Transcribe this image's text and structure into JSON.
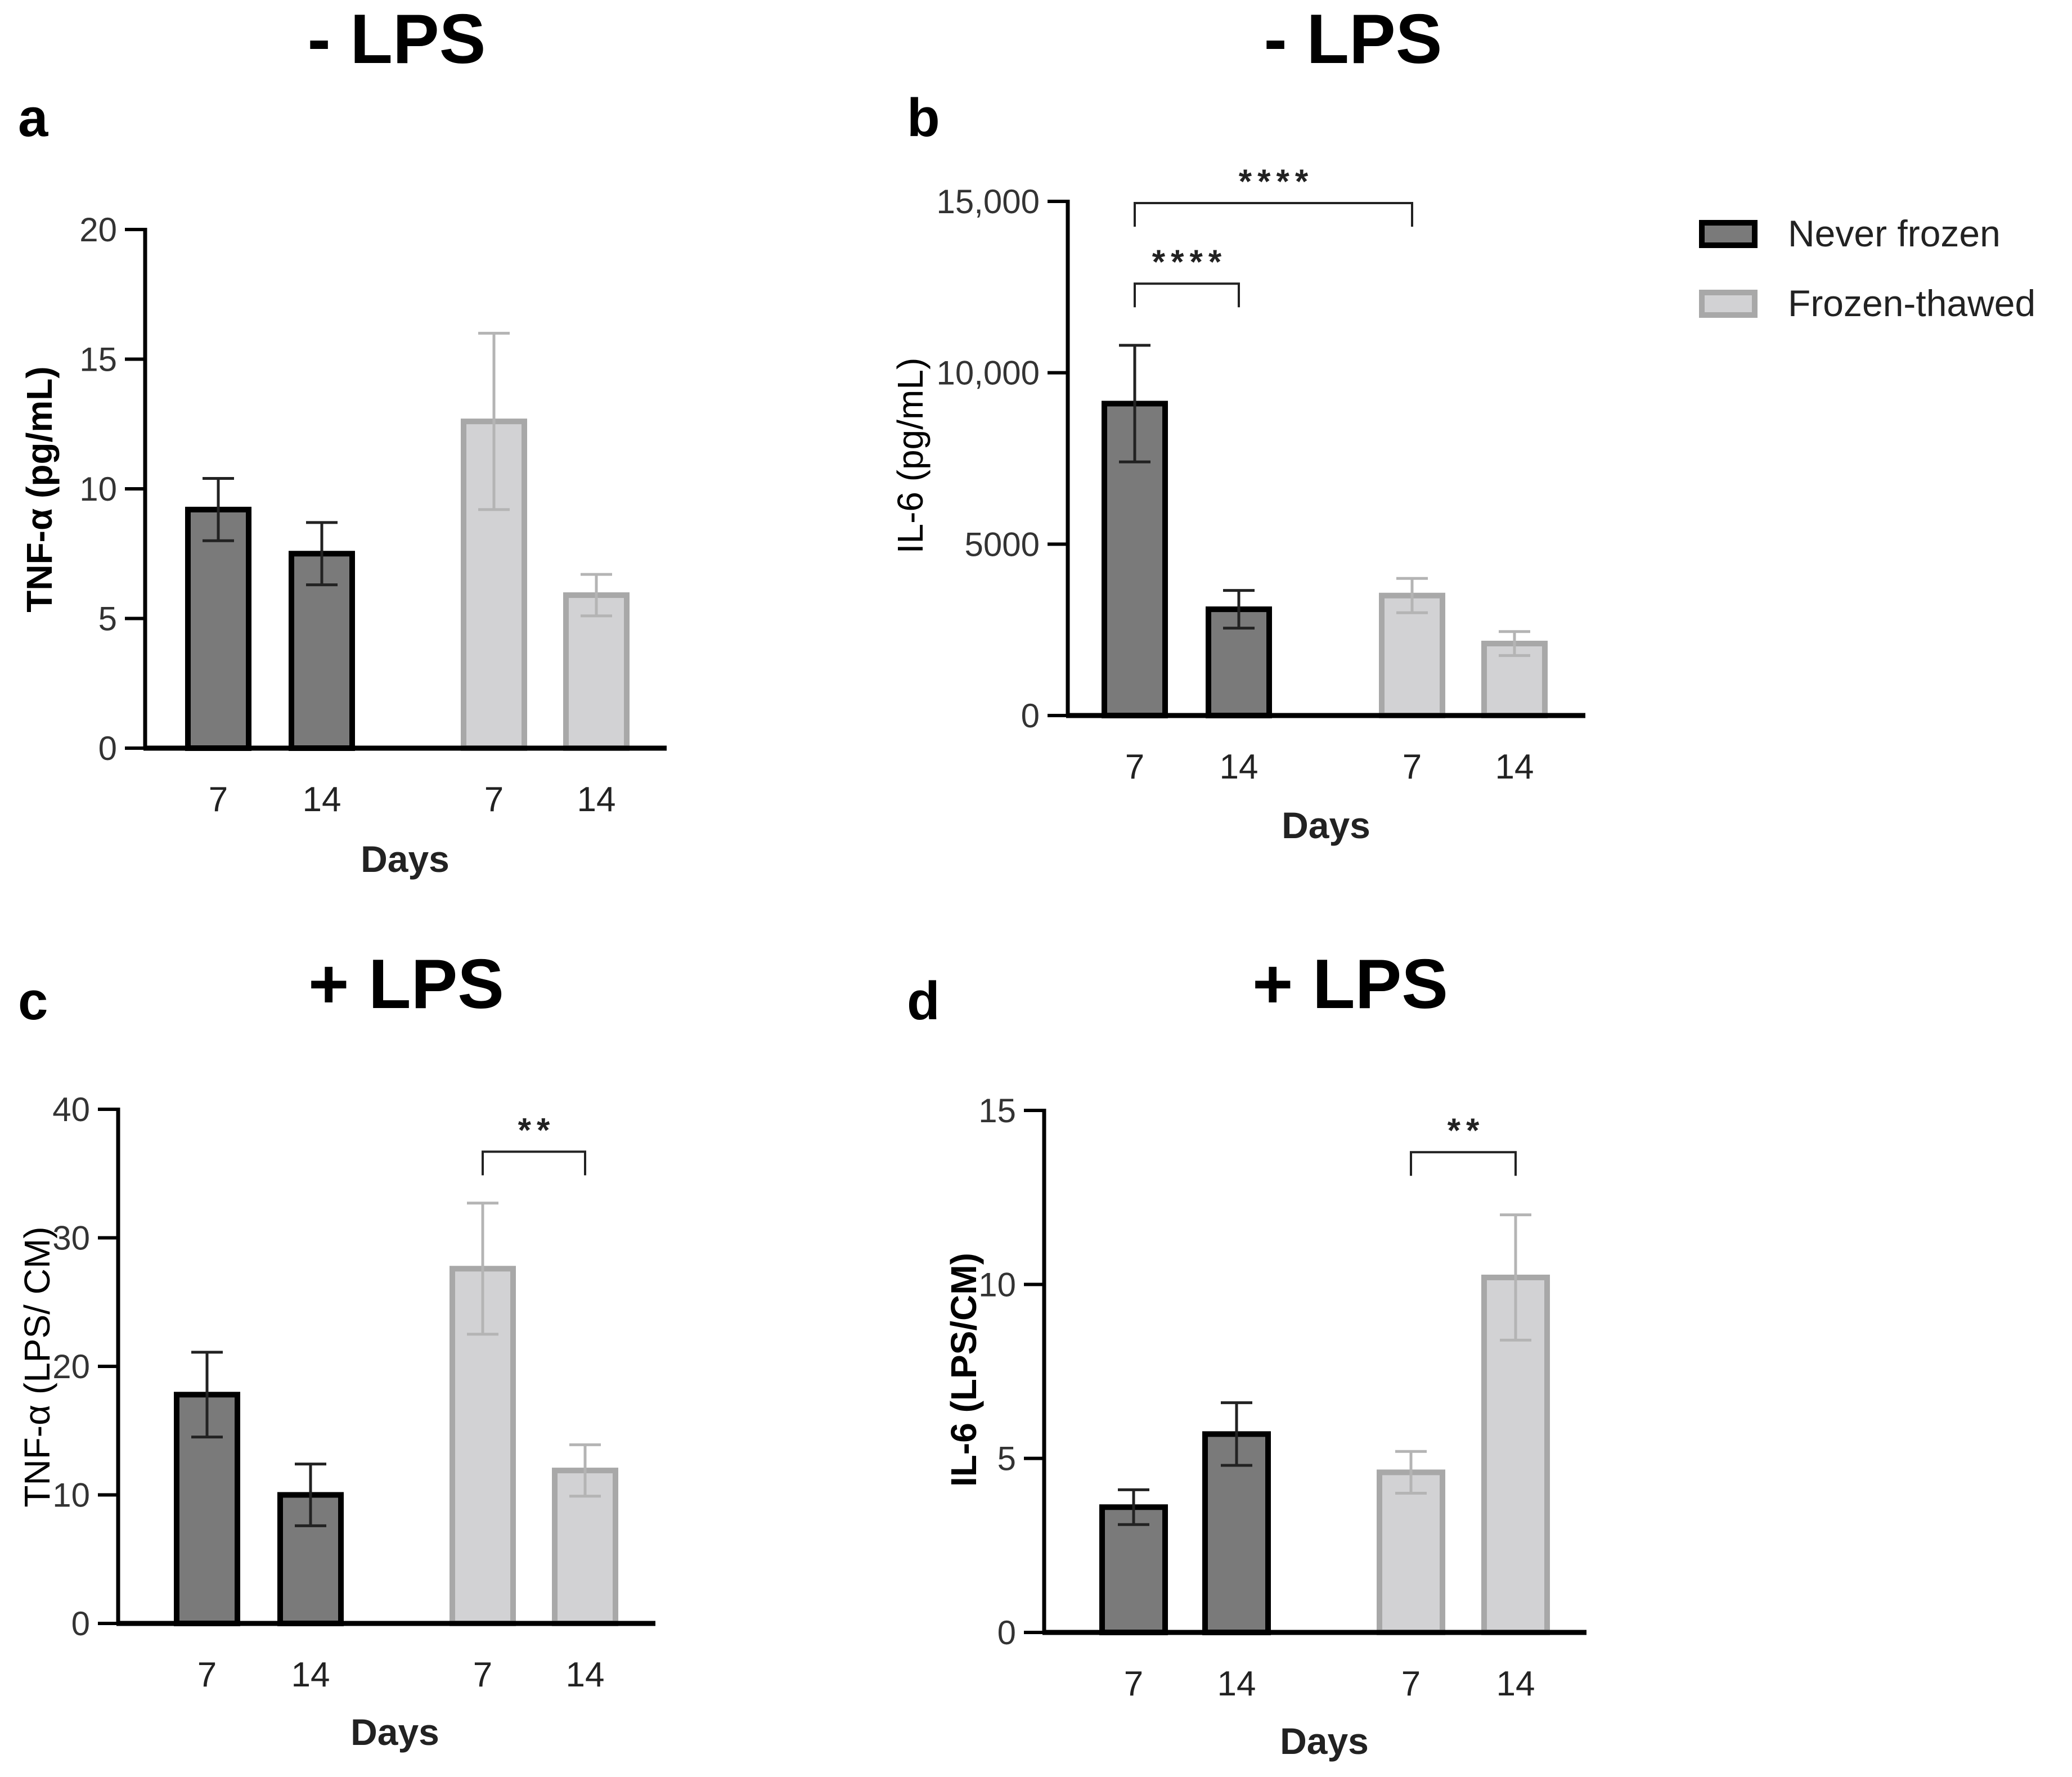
{
  "colors": {
    "never_frozen_fill": "#7a7a7a",
    "never_frozen_stroke": "#000000",
    "never_frozen_err": "#222222",
    "frozen_thawed_fill": "#d2d2d4",
    "frozen_thawed_stroke": "#a8a8a8",
    "frozen_thawed_err": "#b4b4b4"
  },
  "legend": {
    "entries": [
      {
        "label": "Never frozen",
        "series": "never_frozen"
      },
      {
        "label": "Frozen-thawed",
        "series": "frozen_thawed"
      }
    ]
  },
  "chart_data": [
    {
      "type": "bar",
      "panel": "a",
      "title": "- LPS",
      "ylabel": "TNF-α (pg/mL)",
      "ylabel_bold": true,
      "xlabel": "Days",
      "ylim": [
        0,
        20
      ],
      "yticks": [
        0,
        5,
        10,
        15,
        20
      ],
      "ytick_labels": [
        "0",
        "5",
        "10",
        "15",
        "20"
      ],
      "categories": [
        "7",
        "14",
        "7",
        "14"
      ],
      "bars": [
        {
          "series": "never_frozen",
          "value": 9.2,
          "err": 1.2
        },
        {
          "series": "never_frozen",
          "value": 7.5,
          "err": 1.2
        },
        {
          "series": "frozen_thawed",
          "value": 12.6,
          "err": 3.4
        },
        {
          "series": "frozen_thawed",
          "value": 5.9,
          "err": 0.8
        }
      ],
      "significance": []
    },
    {
      "type": "bar",
      "panel": "b",
      "title": "- LPS",
      "ylabel": "IL-6 (pg/mL)",
      "ylabel_bold": false,
      "xlabel": "Days",
      "ylim": [
        0,
        15000
      ],
      "yticks": [
        0,
        5000,
        10000,
        15000
      ],
      "ytick_labels": [
        "0",
        "5000",
        "10,000",
        "15,000"
      ],
      "categories": [
        "7",
        "14",
        "7",
        "14"
      ],
      "bars": [
        {
          "series": "never_frozen",
          "value": 9100,
          "err": 1700
        },
        {
          "series": "never_frozen",
          "value": 3100,
          "err": 550
        },
        {
          "series": "frozen_thawed",
          "value": 3500,
          "err": 500
        },
        {
          "series": "frozen_thawed",
          "value": 2100,
          "err": 350
        }
      ],
      "significance": [
        {
          "from": 0,
          "to": 2,
          "y": 14950,
          "label": "****"
        },
        {
          "from": 0,
          "to": 1,
          "y": 12600,
          "label": "****"
        }
      ]
    },
    {
      "type": "bar",
      "panel": "c",
      "title": "+ LPS",
      "ylabel": "TNF-α (LPS/ CM)",
      "ylabel_bold": false,
      "xlabel": "Days",
      "ylim": [
        0,
        40
      ],
      "yticks": [
        0,
        10,
        20,
        30,
        40
      ],
      "ytick_labels": [
        "0",
        "10",
        "20",
        "30",
        "40"
      ],
      "categories": [
        "7",
        "14",
        "7",
        "14"
      ],
      "bars": [
        {
          "series": "never_frozen",
          "value": 17.8,
          "err": 3.3
        },
        {
          "series": "never_frozen",
          "value": 10.0,
          "err": 2.4
        },
        {
          "series": "frozen_thawed",
          "value": 27.6,
          "err": 5.1
        },
        {
          "series": "frozen_thawed",
          "value": 11.9,
          "err": 2.0
        }
      ],
      "significance": [
        {
          "from": 2,
          "to": 3,
          "y": 36.7,
          "label": "**"
        }
      ]
    },
    {
      "type": "bar",
      "panel": "d",
      "title": "+ LPS",
      "ylabel": "IL-6 (LPS/CM)",
      "ylabel_bold": true,
      "xlabel": "Days",
      "ylim": [
        0,
        15
      ],
      "yticks": [
        0,
        5,
        10,
        15
      ],
      "ytick_labels": [
        "0",
        "5",
        "10",
        "15"
      ],
      "categories": [
        "7",
        "14",
        "7",
        "14"
      ],
      "bars": [
        {
          "series": "never_frozen",
          "value": 3.6,
          "err": 0.5
        },
        {
          "series": "never_frozen",
          "value": 5.7,
          "err": 0.9
        },
        {
          "series": "frozen_thawed",
          "value": 4.6,
          "err": 0.6
        },
        {
          "series": "frozen_thawed",
          "value": 10.2,
          "err": 1.8
        }
      ],
      "significance": [
        {
          "from": 2,
          "to": 3,
          "y": 13.8,
          "label": "**"
        }
      ]
    }
  ]
}
